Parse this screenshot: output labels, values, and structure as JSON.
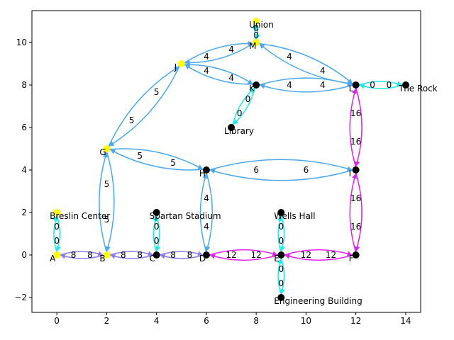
{
  "axes": {
    "xlim": [
      -1,
      14.6
    ],
    "ylim": [
      -2.7,
      11.5
    ],
    "xticks": [
      0,
      2,
      4,
      6,
      8,
      10,
      12,
      14
    ],
    "yticks": [
      -2,
      0,
      2,
      4,
      6,
      8,
      10
    ]
  },
  "colors": {
    "blue": "#4aa8f0",
    "purple": "#8c7cf0",
    "magenta": "#e020f0",
    "cyan": "#20e8e8",
    "node_black": "#000000",
    "node_yellow": "#ffff00"
  },
  "nodes": [
    {
      "id": "A",
      "label": "A",
      "x": 0,
      "y": 0,
      "color": "yellow"
    },
    {
      "id": "B",
      "label": "B",
      "x": 2,
      "y": 0,
      "color": "yellow"
    },
    {
      "id": "C",
      "label": "C",
      "x": 4,
      "y": 0,
      "color": "black"
    },
    {
      "id": "D",
      "label": "D",
      "x": 6,
      "y": 0,
      "color": "black"
    },
    {
      "id": "E",
      "label": "E",
      "x": 9,
      "y": 0,
      "color": "black"
    },
    {
      "id": "F",
      "label": "F",
      "x": 12,
      "y": 0,
      "color": "black"
    },
    {
      "id": "G",
      "label": "G",
      "x": 2,
      "y": 5,
      "color": "yellow"
    },
    {
      "id": "H",
      "label": "H",
      "x": 6,
      "y": 4,
      "color": "black"
    },
    {
      "id": "I",
      "label": "I",
      "x": 12,
      "y": 4,
      "color": "black"
    },
    {
      "id": "J",
      "label": "J",
      "x": 5,
      "y": 9,
      "color": "yellow"
    },
    {
      "id": "K",
      "label": "K",
      "x": 8,
      "y": 8,
      "color": "black"
    },
    {
      "id": "L",
      "label": "L",
      "x": 12,
      "y": 8,
      "color": "black"
    },
    {
      "id": "M",
      "label": "M",
      "x": 8,
      "y": 10,
      "color": "yellow"
    },
    {
      "id": "BreslinCenter",
      "label": "Breslin Center",
      "x": 0,
      "y": 2,
      "color": "yellow"
    },
    {
      "id": "SpartanStadium",
      "label": "Spartan Stadium",
      "x": 4,
      "y": 2,
      "color": "black"
    },
    {
      "id": "WellsHall",
      "label": "Wells Hall",
      "x": 9,
      "y": 2,
      "color": "black"
    },
    {
      "id": "EngineeringBuilding",
      "label": "Engineering Building",
      "x": 9,
      "y": -2,
      "color": "black"
    },
    {
      "id": "Library",
      "label": "Library",
      "x": 7,
      "y": 6,
      "color": "black"
    },
    {
      "id": "Union",
      "label": "Union",
      "x": 8,
      "y": 11,
      "color": "yellow"
    },
    {
      "id": "TheRock",
      "label": "The Rock",
      "x": 14,
      "y": 8,
      "color": "black"
    }
  ],
  "edges": [
    {
      "from": "A",
      "to": "B",
      "weight": "8",
      "color": "purple"
    },
    {
      "from": "B",
      "to": "C",
      "weight": "8",
      "color": "purple"
    },
    {
      "from": "C",
      "to": "D",
      "weight": "8",
      "color": "purple"
    },
    {
      "from": "D",
      "to": "E",
      "weight": "12",
      "color": "magenta"
    },
    {
      "from": "E",
      "to": "F",
      "weight": "12",
      "color": "magenta"
    },
    {
      "from": "F",
      "to": "I",
      "weight": "16",
      "color": "magenta"
    },
    {
      "from": "I",
      "to": "L",
      "weight": "16",
      "color": "magenta"
    },
    {
      "from": "B",
      "to": "G",
      "weight": "5",
      "color": "blue"
    },
    {
      "from": "G",
      "to": "J",
      "weight": "5",
      "color": "blue"
    },
    {
      "from": "G",
      "to": "H",
      "weight": "5",
      "color": "blue"
    },
    {
      "from": "D",
      "to": "H",
      "weight": "4",
      "color": "blue"
    },
    {
      "from": "H",
      "to": "I",
      "weight": "6",
      "color": "blue"
    },
    {
      "from": "J",
      "to": "M",
      "weight": "4",
      "color": "blue"
    },
    {
      "from": "J",
      "to": "K",
      "weight": "4",
      "color": "blue"
    },
    {
      "from": "K",
      "to": "L",
      "weight": "4",
      "color": "blue"
    },
    {
      "from": "M",
      "to": "L",
      "weight": "4",
      "color": "blue"
    },
    {
      "from": "BreslinCenter",
      "to": "A",
      "weight": "0",
      "color": "cyan"
    },
    {
      "from": "SpartanStadium",
      "to": "C",
      "weight": "0",
      "color": "cyan"
    },
    {
      "from": "WellsHall",
      "to": "E",
      "weight": "0",
      "color": "cyan"
    },
    {
      "from": "E",
      "to": "EngineeringBuilding",
      "weight": "0",
      "color": "cyan"
    },
    {
      "from": "K",
      "to": "Library",
      "weight": "0",
      "color": "cyan"
    },
    {
      "from": "Union",
      "to": "M",
      "weight": "0",
      "color": "cyan"
    },
    {
      "from": "L",
      "to": "TheRock",
      "weight": "0",
      "color": "cyan"
    }
  ]
}
